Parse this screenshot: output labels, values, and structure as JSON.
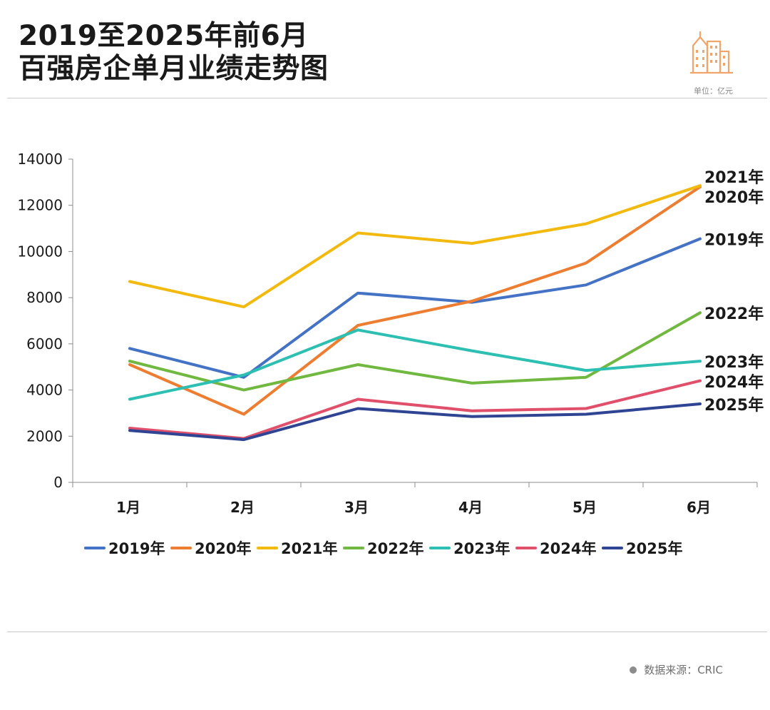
{
  "header": {
    "title_line1": "2019至2025年前6月",
    "title_line2": "百强房企单月业绩走势图",
    "unit": "单位：亿元"
  },
  "footer": {
    "source": "数据来源：CRIC"
  },
  "logo": {
    "icon": "city-buildings-icon",
    "color": "#f0a56a"
  },
  "chart_data": {
    "type": "line",
    "title": "2019至2025年前6月 百强房企单月业绩走势图",
    "unit": "单位：亿元",
    "categories": [
      "1月",
      "2月",
      "3月",
      "4月",
      "5月",
      "6月"
    ],
    "ylim": [
      0,
      14000
    ],
    "yticks": [
      0,
      2000,
      4000,
      6000,
      8000,
      10000,
      12000,
      14000
    ],
    "grid": false,
    "legend": "bottom",
    "series": [
      {
        "name": "2019年",
        "color": "#4472c4",
        "values": [
          5800,
          4550,
          8200,
          7800,
          8550,
          10550
        ]
      },
      {
        "name": "2020年",
        "color": "#ed7d31",
        "values": [
          5100,
          2950,
          6800,
          7850,
          9500,
          12800
        ]
      },
      {
        "name": "2021年",
        "color": "#f2b90f",
        "values": [
          8700,
          7600,
          10800,
          10350,
          11200,
          12850
        ]
      },
      {
        "name": "2022年",
        "color": "#70b83f",
        "values": [
          5250,
          4000,
          5100,
          4300,
          4550,
          7350
        ]
      },
      {
        "name": "2023年",
        "color": "#2ebfb3",
        "values": [
          3600,
          4650,
          6600,
          5700,
          4850,
          5250
        ]
      },
      {
        "name": "2024年",
        "color": "#e0506a",
        "values": [
          2350,
          1900,
          3600,
          3100,
          3200,
          4400
        ]
      },
      {
        "name": "2025年",
        "color": "#2f4593",
        "values": [
          2250,
          1850,
          3200,
          2850,
          2950,
          3400
        ]
      }
    ]
  }
}
